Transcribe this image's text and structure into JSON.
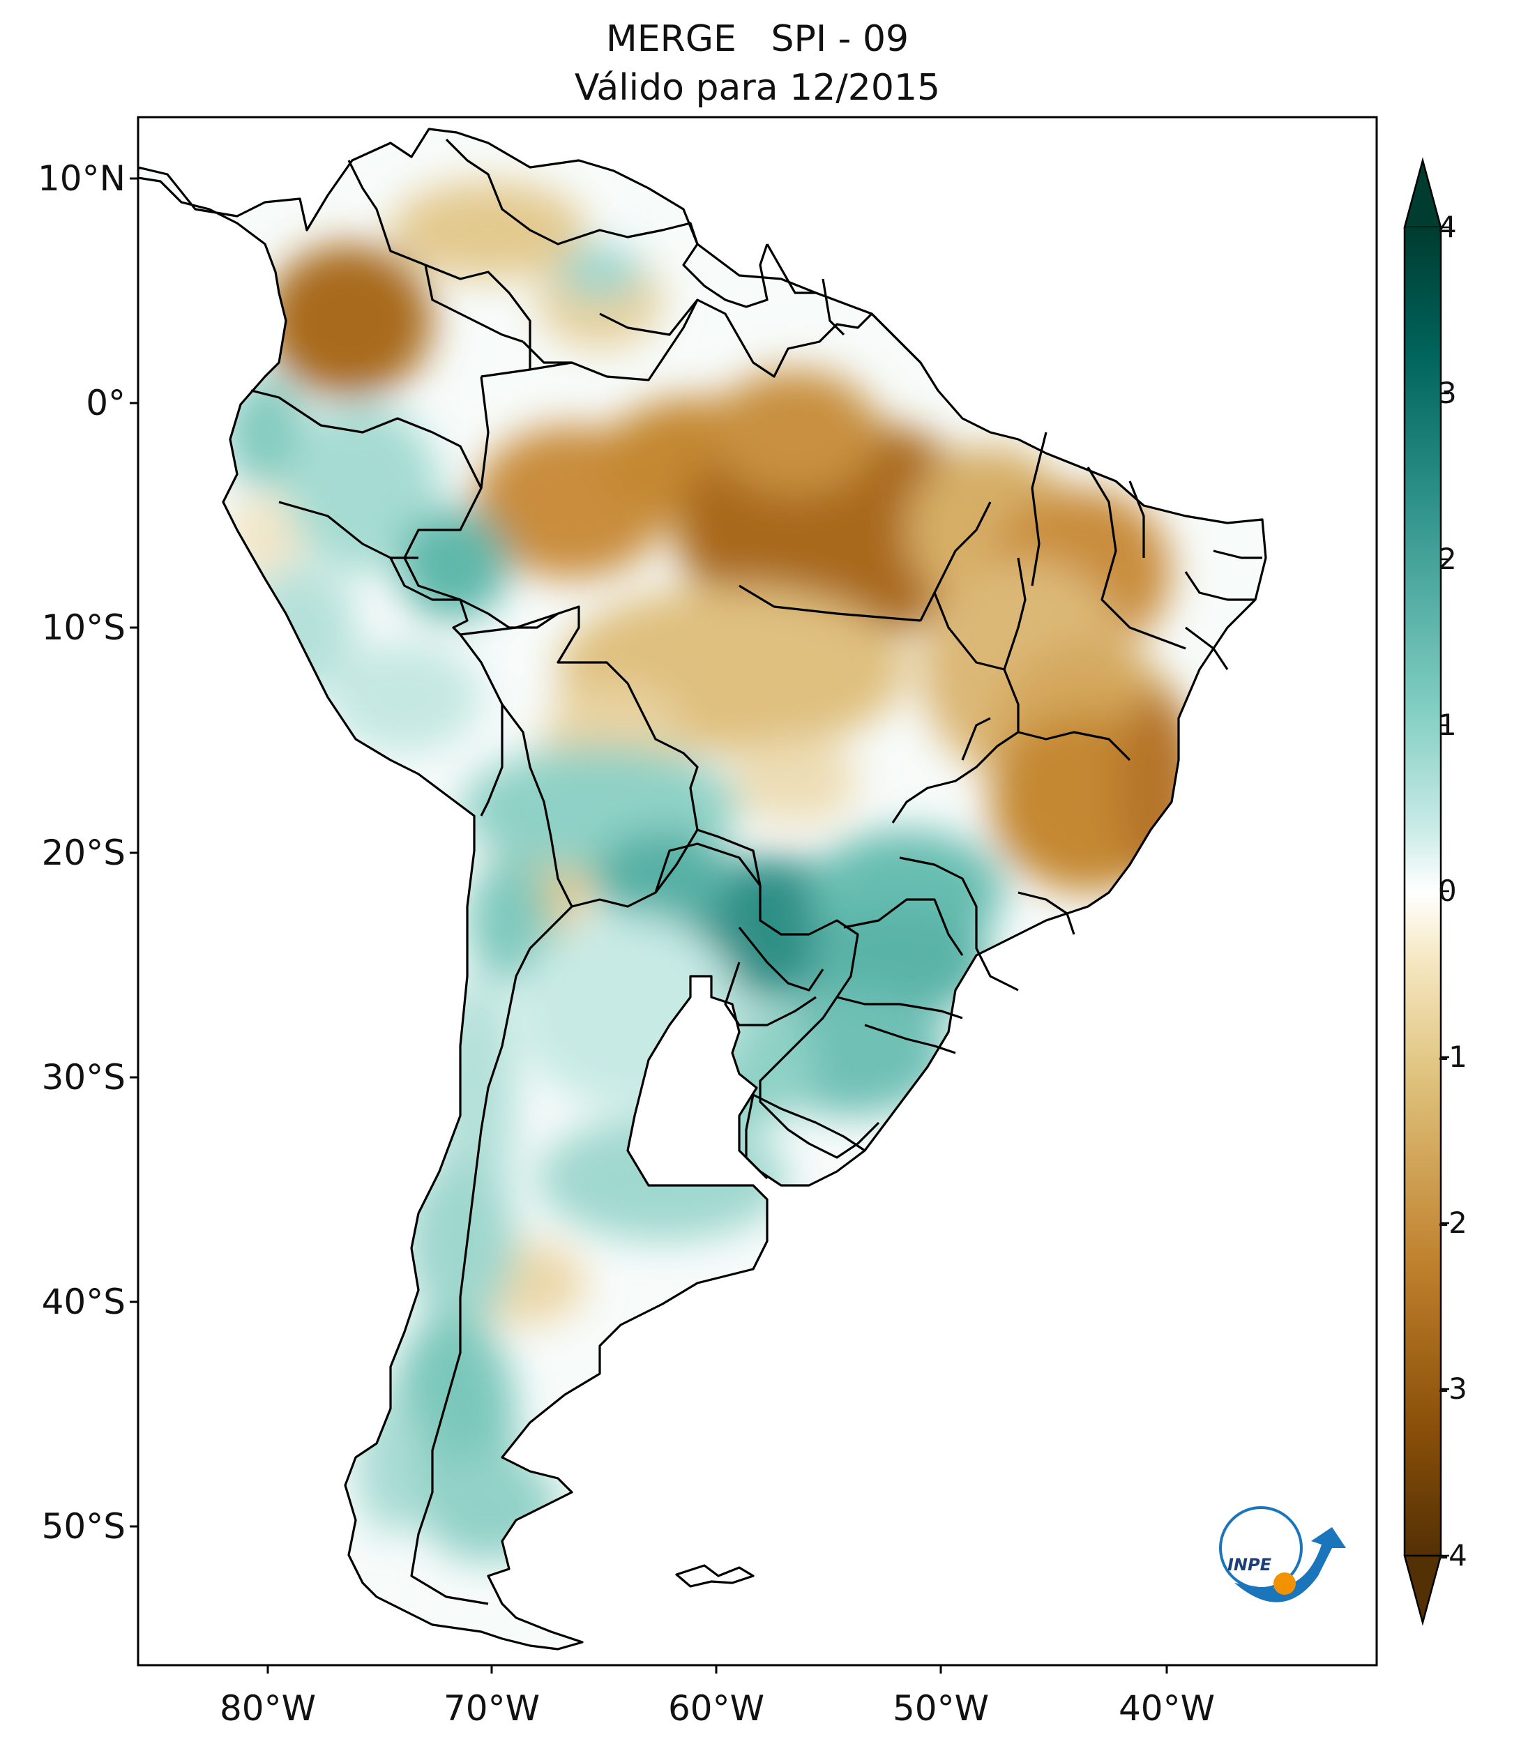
{
  "title": {
    "line1": "MERGE   SPI - 09",
    "line2": "Válido para 12/2015"
  },
  "axes": {
    "latitude_labels": [
      "10°N",
      "0°",
      "10°S",
      "20°S",
      "30°S",
      "40°S",
      "50°S"
    ],
    "longitude_labels": [
      "80°W",
      "70°W",
      "60°W",
      "50°W",
      "40°W"
    ]
  },
  "colorbar": {
    "ticks": [
      "4",
      "3",
      "2",
      "1",
      "0",
      "-1",
      "-2",
      "-3",
      "-4"
    ],
    "extend": "both",
    "colors": {
      "dry_extreme": "#543005",
      "dry_strong": "#8c510a",
      "dry": "#bf812d",
      "dry_mild": "#dfc27d",
      "dry_weak": "#f6e8c3",
      "neutral": "#ffffff",
      "wet_weak": "#c7eae5",
      "wet_mild": "#80cdc1",
      "wet": "#35978f",
      "wet_strong": "#01665e",
      "wet_extreme": "#003c30"
    }
  },
  "logo": {
    "text": "INPE"
  }
}
